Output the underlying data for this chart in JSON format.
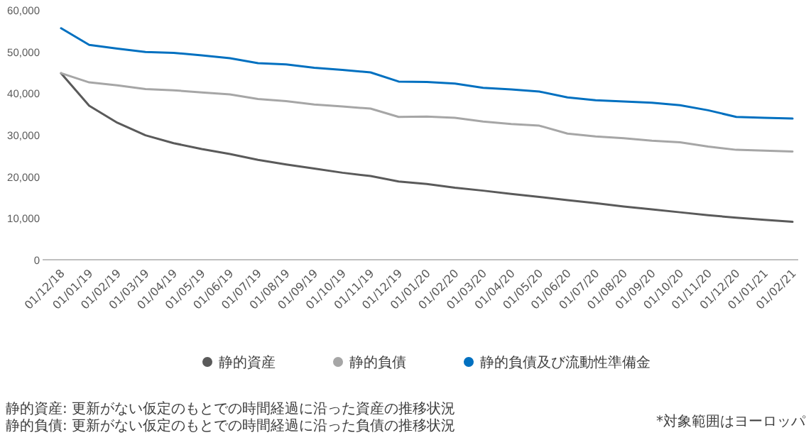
{
  "chart_data": {
    "type": "line",
    "categories": [
      "01/12/18",
      "01/01/19",
      "01/02/19",
      "01/03/19",
      "01/04/19",
      "01/05/19",
      "01/06/19",
      "01/07/19",
      "01/08/19",
      "01/09/19",
      "01/10/19",
      "01/11/19",
      "01/12/19",
      "01/01/20",
      "01/02/20",
      "01/03/20",
      "01/04/20",
      "01/05/20",
      "01/06/20",
      "01/07/20",
      "01/08/20",
      "01/09/20",
      "01/10/20",
      "01/11/20",
      "01/12/20",
      "01/01/21",
      "01/02/21"
    ],
    "series": [
      {
        "name": "静的資産",
        "color": "#5a5a5a",
        "values": [
          44800,
          37000,
          32900,
          29900,
          28000,
          26600,
          25400,
          24000,
          22900,
          21900,
          20900,
          20100,
          18800,
          18200,
          17300,
          16600,
          15800,
          15100,
          14300,
          13600,
          12800,
          12100,
          11400,
          10700,
          10100,
          9600,
          9100
        ]
      },
      {
        "name": "静的負債",
        "color": "#a6a6a6",
        "values": [
          44800,
          42600,
          41900,
          41000,
          40700,
          40200,
          39700,
          38600,
          38100,
          37300,
          36800,
          36300,
          34300,
          34400,
          34100,
          33200,
          32600,
          32200,
          30300,
          29600,
          29200,
          28600,
          28200,
          27200,
          26400,
          26200,
          26000
        ]
      },
      {
        "name": "静的負債及び流動性準備金",
        "color": "#0070c0",
        "values": [
          55600,
          51600,
          50700,
          49900,
          49700,
          49100,
          48400,
          47200,
          46900,
          46100,
          45600,
          45000,
          42800,
          42700,
          42300,
          41300,
          40900,
          40400,
          39000,
          38300,
          38000,
          37700,
          37100,
          35900,
          34300,
          34100,
          33900
        ]
      }
    ],
    "ylim": [
      0,
      60000
    ],
    "yticks": [
      {
        "value": 0,
        "label": "0"
      },
      {
        "value": 10000,
        "label": "10,000"
      },
      {
        "value": 20000,
        "label": "20,000"
      },
      {
        "value": 30000,
        "label": "30,000"
      },
      {
        "value": 40000,
        "label": "40,000"
      },
      {
        "value": 50000,
        "label": "50,000"
      },
      {
        "value": 60000,
        "label": "60,000"
      }
    ],
    "legend": "bottom",
    "marker": "none",
    "line_style": "solid",
    "annotations": [
      "静的資産: 更新がない仮定のもとでの時間経過に沿った資産の推移状況",
      "静的負債: 更新がない仮定のもとでの時間経過に沿った負債の推移状況",
      "*対象範囲はヨーロッパ"
    ]
  }
}
